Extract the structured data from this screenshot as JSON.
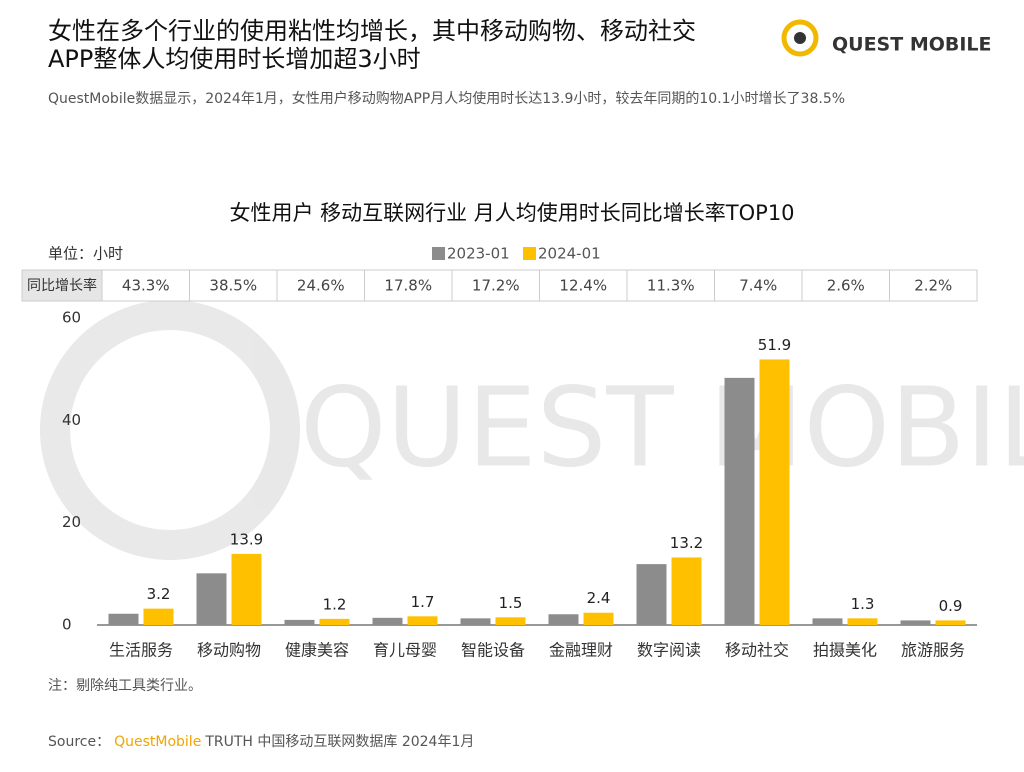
{
  "header": {
    "title_lines": [
      "女性在多个行业的使用粘性均增长，其中移动购物、移动社交",
      "APP整体人均使用时长增加超3小时"
    ],
    "subtitle": "QuestMobile数据显示，2024年1月，女性用户移动购物APP月人均使用时长达13.9小时，较去年同期的10.1小时增长了38.5%",
    "logo": "QUEST MOBILE"
  },
  "watermark": "QUEST MOBILE",
  "unit": "单位：小时",
  "growth_row": {
    "label": "同比增长率",
    "cells": [
      "43.3%",
      "38.5%",
      "24.6%",
      "17.8%",
      "17.2%",
      "12.4%",
      "11.3%",
      "7.4%",
      "2.6%",
      "2.2%"
    ]
  },
  "chart_data": {
    "type": "bar",
    "title": "女性用户 移动互联网行业 月人均使用时长同比增长率TOP10",
    "categories": [
      "生活服务",
      "移动购物",
      "健康美容",
      "育儿母婴",
      "智能设备",
      "金融理财",
      "数字阅读",
      "移动社交",
      "拍摄美化",
      "旅游服务"
    ],
    "series": [
      {
        "name": "2023-01",
        "color": "#8c8c8c",
        "values": [
          2.2,
          10.1,
          1.0,
          1.4,
          1.3,
          2.1,
          11.9,
          48.3,
          1.3,
          0.9
        ]
      },
      {
        "name": "2024-01",
        "color": "#ffc000",
        "values": [
          3.2,
          13.9,
          1.2,
          1.7,
          1.5,
          2.4,
          13.2,
          51.9,
          1.3,
          0.9
        ],
        "labels": true
      }
    ],
    "ylim": [
      0,
      60
    ],
    "yticks": [
      0,
      20,
      40,
      60
    ],
    "grid": false
  },
  "note": "注：剔除纯工具类行业。",
  "source": {
    "prefix": "Source：",
    "brand": "QuestMobile",
    "rest": "TRUTH 中国移动互联网数据库 2024年1月"
  }
}
